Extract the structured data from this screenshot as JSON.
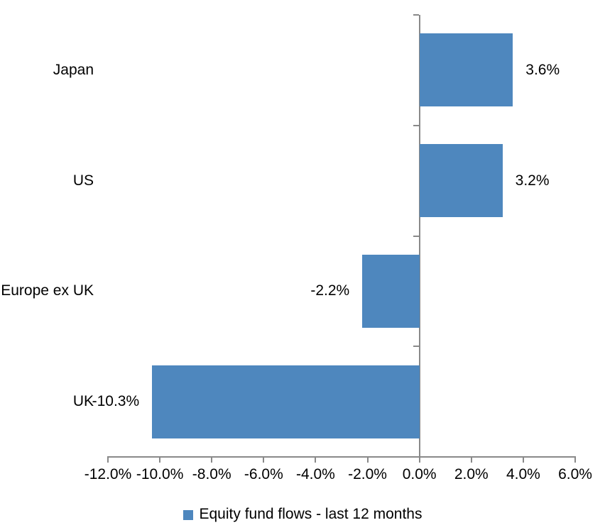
{
  "chart_data": {
    "type": "bar",
    "orientation": "horizontal",
    "title": "",
    "categories": [
      "Japan",
      "US",
      "Europe ex UK",
      "UK"
    ],
    "values": [
      3.6,
      3.2,
      -2.2,
      -10.3
    ],
    "data_labels": [
      "3.6%",
      "3.2%",
      "-2.2%",
      "-10.3%"
    ],
    "x_tick_values": [
      -12,
      -10,
      -8,
      -6,
      -4,
      -2,
      0,
      2,
      4,
      6
    ],
    "x_tick_labels": [
      "-12.0%",
      "-10.0%",
      "-8.0%",
      "-6.0%",
      "-4.0%",
      "-2.0%",
      "0.0%",
      "2.0%",
      "4.0%",
      "6.0%"
    ],
    "xlim": [
      -12,
      6
    ],
    "grid": false,
    "legend": "Equity fund flows - last 12 months",
    "legend_position": "bottom",
    "bar_color": "#4E87BE",
    "axis_color": "#898989",
    "text_color": "#000000",
    "background_color": "#FFFFFF"
  }
}
